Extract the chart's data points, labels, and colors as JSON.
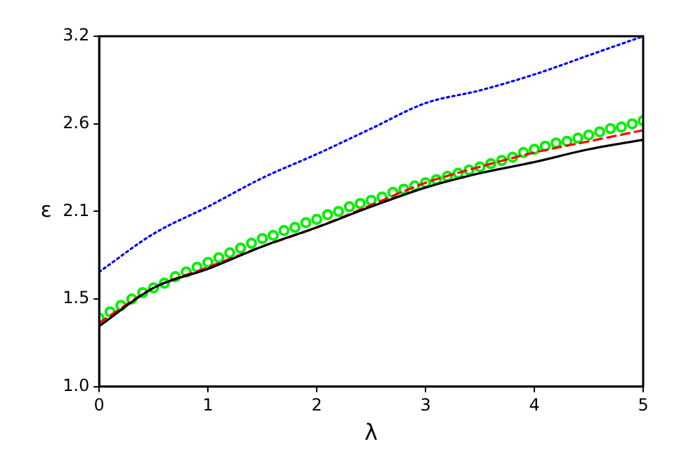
{
  "chart_data": {
    "type": "line",
    "xlabel": "λ",
    "ylabel": "ε",
    "xlim": [
      0,
      5
    ],
    "ylim": [
      1.0,
      3.2
    ],
    "xticks": [
      0,
      1,
      2,
      3,
      4,
      5
    ],
    "yticks": [
      {
        "value": 1.0,
        "label": "1.0"
      },
      {
        "value": 1.55,
        "label": "1.5"
      },
      {
        "value": 2.1,
        "label": "2.1"
      },
      {
        "value": 2.65,
        "label": "2.6"
      },
      {
        "value": 3.2,
        "label": "3.2"
      }
    ],
    "grid": false,
    "legend": false,
    "series": [
      {
        "color": "#000000",
        "line_style": "solid",
        "marker": "none",
        "x": [
          0,
          0.5,
          1,
          1.5,
          2,
          2.5,
          3,
          3.5,
          4,
          4.5,
          5
        ],
        "values": [
          1.38,
          1.62,
          1.74,
          1.88,
          2.0,
          2.13,
          2.25,
          2.34,
          2.41,
          2.49,
          2.55
        ]
      },
      {
        "color": "#ff0000",
        "line_style": "dashed",
        "marker": "none",
        "x": [
          0,
          0.5,
          1,
          1.5,
          2,
          2.5,
          3,
          3.5,
          4,
          4.5,
          5
        ],
        "values": [
          1.4,
          1.62,
          1.75,
          1.88,
          2.0,
          2.14,
          2.28,
          2.38,
          2.47,
          2.54,
          2.61
        ]
      },
      {
        "type": "scatter",
        "color": "#00ee00",
        "marker": "circle",
        "x": [
          0,
          0.1,
          0.2,
          0.3,
          0.4,
          0.5,
          0.6,
          0.7,
          0.8,
          0.9,
          1,
          1.1,
          1.2,
          1.3,
          1.4,
          1.5,
          1.6,
          1.7,
          1.8,
          1.9,
          2,
          2.1,
          2.2,
          2.3,
          2.4,
          2.5,
          2.6,
          2.7,
          2.8,
          2.9,
          3,
          3.1,
          3.2,
          3.3,
          3.4,
          3.5,
          3.6,
          3.7,
          3.8,
          3.9,
          4,
          4.1,
          4.2,
          4.3,
          4.4,
          4.5,
          4.6,
          4.7,
          4.8,
          4.9,
          5
        ],
        "values": [
          1.43,
          1.47,
          1.51,
          1.55,
          1.59,
          1.62,
          1.65,
          1.69,
          1.72,
          1.75,
          1.78,
          1.81,
          1.84,
          1.87,
          1.9,
          1.93,
          1.95,
          1.98,
          2.0,
          2.03,
          2.05,
          2.08,
          2.1,
          2.13,
          2.15,
          2.17,
          2.19,
          2.22,
          2.24,
          2.26,
          2.28,
          2.3,
          2.32,
          2.34,
          2.36,
          2.38,
          2.4,
          2.42,
          2.44,
          2.47,
          2.49,
          2.51,
          2.53,
          2.54,
          2.56,
          2.58,
          2.6,
          2.62,
          2.63,
          2.65,
          2.67
        ]
      },
      {
        "color": "#0000ff",
        "line_style": "dotted",
        "marker": "none",
        "x": [
          0,
          0.5,
          1,
          1.5,
          2,
          2.5,
          3,
          3.5,
          4,
          4.5,
          5
        ],
        "values": [
          1.72,
          1.96,
          2.13,
          2.31,
          2.46,
          2.62,
          2.78,
          2.86,
          2.96,
          3.08,
          3.2
        ]
      }
    ]
  }
}
